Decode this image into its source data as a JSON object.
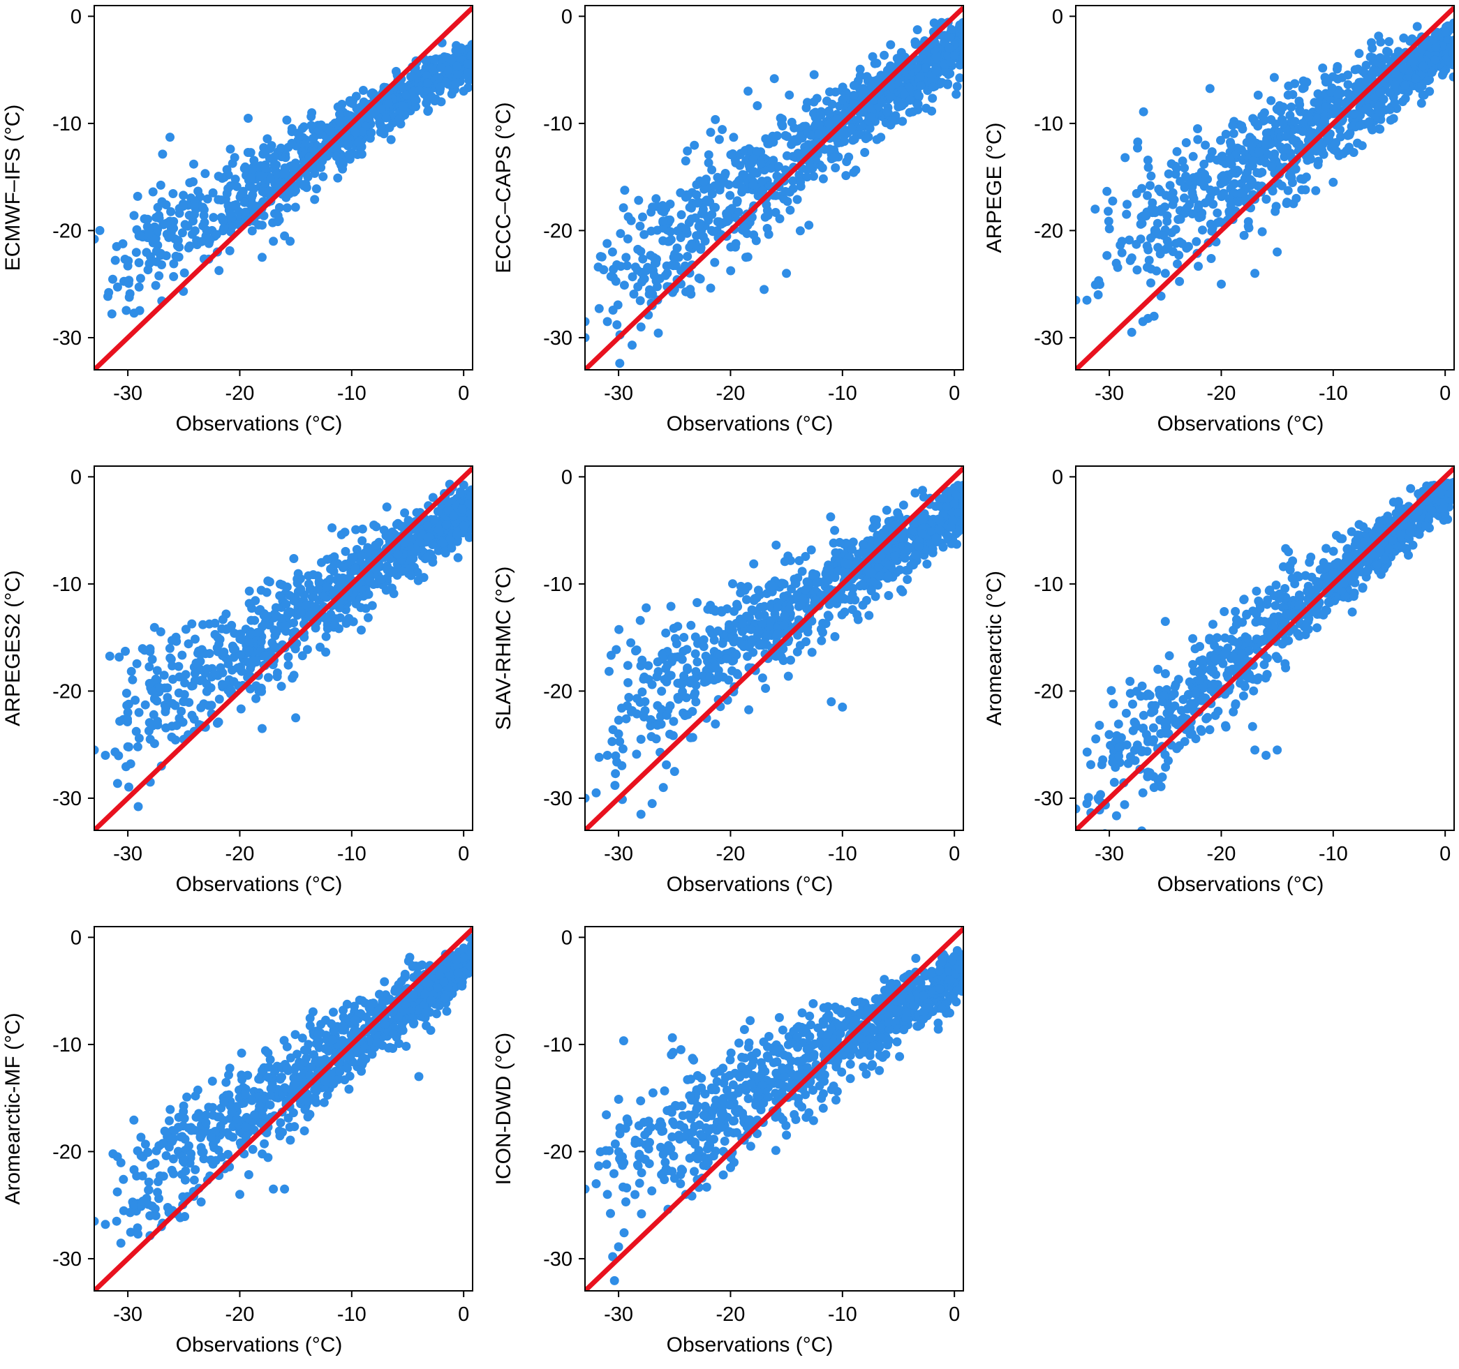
{
  "figure": {
    "point_color": "#2f8de6",
    "line_color": "#e8111e"
  },
  "chart_data": [
    {
      "type": "scatter",
      "title": "",
      "xlabel": "Observations (°C)",
      "ylabel": "ECMWF–IFS (°C)",
      "xlim": [
        -33,
        0.8
      ],
      "ylim": [
        -33,
        1
      ],
      "xticks": [
        -30,
        -20,
        -10,
        0
      ],
      "yticks": [
        0,
        -10,
        -20,
        -30
      ],
      "reference_line": "1:1",
      "model": {
        "slope": 0.62,
        "intercept": -4.3,
        "spread": 1.9,
        "seed": 11
      },
      "outliers": [
        [
          -32.5,
          -20
        ],
        [
          -33,
          -20.8
        ],
        [
          -31,
          -21.5
        ],
        [
          -30,
          -23.3
        ],
        [
          -29,
          -23
        ],
        [
          -22,
          -22
        ],
        [
          -18,
          -22.5
        ],
        [
          -17,
          -21
        ],
        [
          -16,
          -20.5
        ],
        [
          -15.5,
          -21
        ],
        [
          -19,
          -19
        ],
        [
          -18,
          -19.5
        ]
      ]
    },
    {
      "type": "scatter",
      "title": "",
      "xlabel": "Observations (°C)",
      "ylabel": "ECCC–CAPS (°C)",
      "xlim": [
        -33,
        0.8
      ],
      "ylim": [
        -33,
        1
      ],
      "xticks": [
        -30,
        -20,
        -10,
        0
      ],
      "yticks": [
        0,
        -10,
        -20,
        -30
      ],
      "reference_line": "1:1",
      "model": {
        "slope": 0.7,
        "intercept": -3.0,
        "spread": 2.6,
        "seed": 23
      },
      "outliers": [
        [
          -33,
          -28.5
        ],
        [
          -31,
          -28.5
        ],
        [
          -33,
          -30
        ],
        [
          -28,
          -29
        ],
        [
          -27,
          -27
        ],
        [
          -25,
          -25.5
        ],
        [
          -17,
          -25.5
        ],
        [
          -15,
          -24
        ],
        [
          -24,
          -13.5
        ],
        [
          -21,
          -11.5
        ],
        [
          -13,
          -19.5
        ]
      ]
    },
    {
      "type": "scatter",
      "title": "",
      "xlabel": "Observations (°C)",
      "ylabel": "ARPEGE (°C)",
      "xlim": [
        -33,
        0.8
      ],
      "ylim": [
        -33,
        1
      ],
      "xticks": [
        -30,
        -20,
        -10,
        0
      ],
      "yticks": [
        0,
        -10,
        -20,
        -30
      ],
      "reference_line": "1:1",
      "model": {
        "slope": 0.62,
        "intercept": -3.2,
        "spread": 2.6,
        "seed": 37
      },
      "outliers": [
        [
          -33,
          -26.5
        ],
        [
          -32,
          -26.5
        ],
        [
          -31,
          -26
        ],
        [
          -28,
          -29.5
        ],
        [
          -27,
          -28.5
        ],
        [
          -26,
          -28
        ],
        [
          -25,
          -24
        ],
        [
          -20,
          -25
        ],
        [
          -17,
          -24
        ],
        [
          -15,
          -22
        ],
        [
          -10,
          -15.5
        ],
        [
          0,
          -1.5
        ],
        [
          1,
          -2.5
        ]
      ]
    },
    {
      "type": "scatter",
      "title": "",
      "xlabel": "Observations (°C)",
      "ylabel": "ARPEGES2 (°C)",
      "xlim": [
        -33,
        0.8
      ],
      "ylim": [
        -33,
        1
      ],
      "xticks": [
        -30,
        -20,
        -10,
        0
      ],
      "yticks": [
        0,
        -10,
        -20,
        -30
      ],
      "reference_line": "1:1",
      "model": {
        "slope": 0.65,
        "intercept": -3.4,
        "spread": 2.3,
        "seed": 41
      },
      "outliers": [
        [
          -33,
          -25.5
        ],
        [
          -32,
          -26
        ],
        [
          -30,
          -25.2
        ],
        [
          -28,
          -28.5
        ],
        [
          -27,
          -27
        ],
        [
          -28,
          -24.5
        ],
        [
          -25,
          -24.5
        ],
        [
          -22,
          -23
        ],
        [
          -18,
          -23.5
        ],
        [
          -15,
          -22.5
        ],
        [
          -30,
          -22
        ],
        [
          -29,
          -22
        ],
        [
          -1,
          -1
        ],
        [
          0.5,
          -2.5
        ]
      ]
    },
    {
      "type": "scatter",
      "title": "",
      "xlabel": "Observations (°C)",
      "ylabel": "SLAV-RHMC (°C)",
      "xlim": [
        -33,
        0.8
      ],
      "ylim": [
        -33,
        1
      ],
      "xticks": [
        -30,
        -20,
        -10,
        0
      ],
      "yticks": [
        0,
        -10,
        -20,
        -30
      ],
      "reference_line": "1:1",
      "model": {
        "slope": 0.62,
        "intercept": -3.4,
        "spread": 2.4,
        "seed": 53
      },
      "outliers": [
        [
          -33,
          -30
        ],
        [
          -32,
          -29.5
        ],
        [
          -28,
          -31.5
        ],
        [
          -27,
          -30.5
        ],
        [
          -26,
          -29
        ],
        [
          -25,
          -27.5
        ],
        [
          -31,
          -26
        ],
        [
          -30,
          -24
        ],
        [
          -28,
          -24.5
        ],
        [
          -11,
          -21
        ],
        [
          -10,
          -21.5
        ],
        [
          -1,
          -2
        ],
        [
          0,
          -2.5
        ]
      ]
    },
    {
      "type": "scatter",
      "title": "",
      "xlabel": "Observations (°C)",
      "ylabel": "Aromearctic (°C)",
      "xlim": [
        -33,
        0.8
      ],
      "ylim": [
        -33,
        1
      ],
      "xticks": [
        -30,
        -20,
        -10,
        0
      ],
      "yticks": [
        0,
        -10,
        -20,
        -30
      ],
      "reference_line": "1:1",
      "model": {
        "slope": 0.83,
        "intercept": -1.6,
        "spread": 2.0,
        "seed": 67
      },
      "outliers": [
        [
          -33,
          -31
        ],
        [
          -32,
          -30.5
        ],
        [
          -31,
          -30
        ],
        [
          -27,
          -29.5
        ],
        [
          -26,
          -29
        ],
        [
          -17,
          -25.5
        ],
        [
          -16,
          -26
        ],
        [
          -15,
          -25.5
        ],
        [
          -14,
          -7
        ],
        [
          -12,
          -7.5
        ],
        [
          -25,
          -13.5
        ]
      ]
    },
    {
      "type": "scatter",
      "title": "",
      "xlabel": "Observations (°C)",
      "ylabel": "Aromearctic-MF (°C)",
      "xlim": [
        -33,
        0.8
      ],
      "ylim": [
        -33,
        1
      ],
      "xticks": [
        -30,
        -20,
        -10,
        0
      ],
      "yticks": [
        0,
        -10,
        -20,
        -30
      ],
      "reference_line": "1:1",
      "model": {
        "slope": 0.7,
        "intercept": -2.8,
        "spread": 2.1,
        "seed": 79
      },
      "outliers": [
        [
          -33,
          -26.5
        ],
        [
          -32,
          -26.8
        ],
        [
          -31,
          -26.5
        ],
        [
          -27,
          -27
        ],
        [
          -26,
          -25.5
        ],
        [
          -20,
          -24
        ],
        [
          -17,
          -23.5
        ],
        [
          -16,
          -23.5
        ],
        [
          -4,
          -13
        ],
        [
          0.5,
          0
        ],
        [
          0,
          -1
        ]
      ]
    },
    {
      "type": "scatter",
      "title": "",
      "xlabel": "Observations (°C)",
      "ylabel": "ICON-DWD (°C)",
      "xlim": [
        -33,
        0.8
      ],
      "ylim": [
        -33,
        1
      ],
      "xticks": [
        -30,
        -20,
        -10,
        0
      ],
      "yticks": [
        0,
        -10,
        -20,
        -30
      ],
      "reference_line": "1:1",
      "model": {
        "slope": 0.58,
        "intercept": -3.9,
        "spread": 2.5,
        "seed": 97
      },
      "outliers": [
        [
          -33,
          -23.5
        ],
        [
          -31,
          -24
        ],
        [
          -32,
          -23
        ],
        [
          -26,
          -22
        ],
        [
          -25,
          -22.5
        ],
        [
          -24,
          -24
        ],
        [
          -22,
          -21
        ],
        [
          -20,
          -21.5
        ],
        [
          1,
          -1.5
        ],
        [
          0.5,
          -3
        ]
      ]
    }
  ]
}
